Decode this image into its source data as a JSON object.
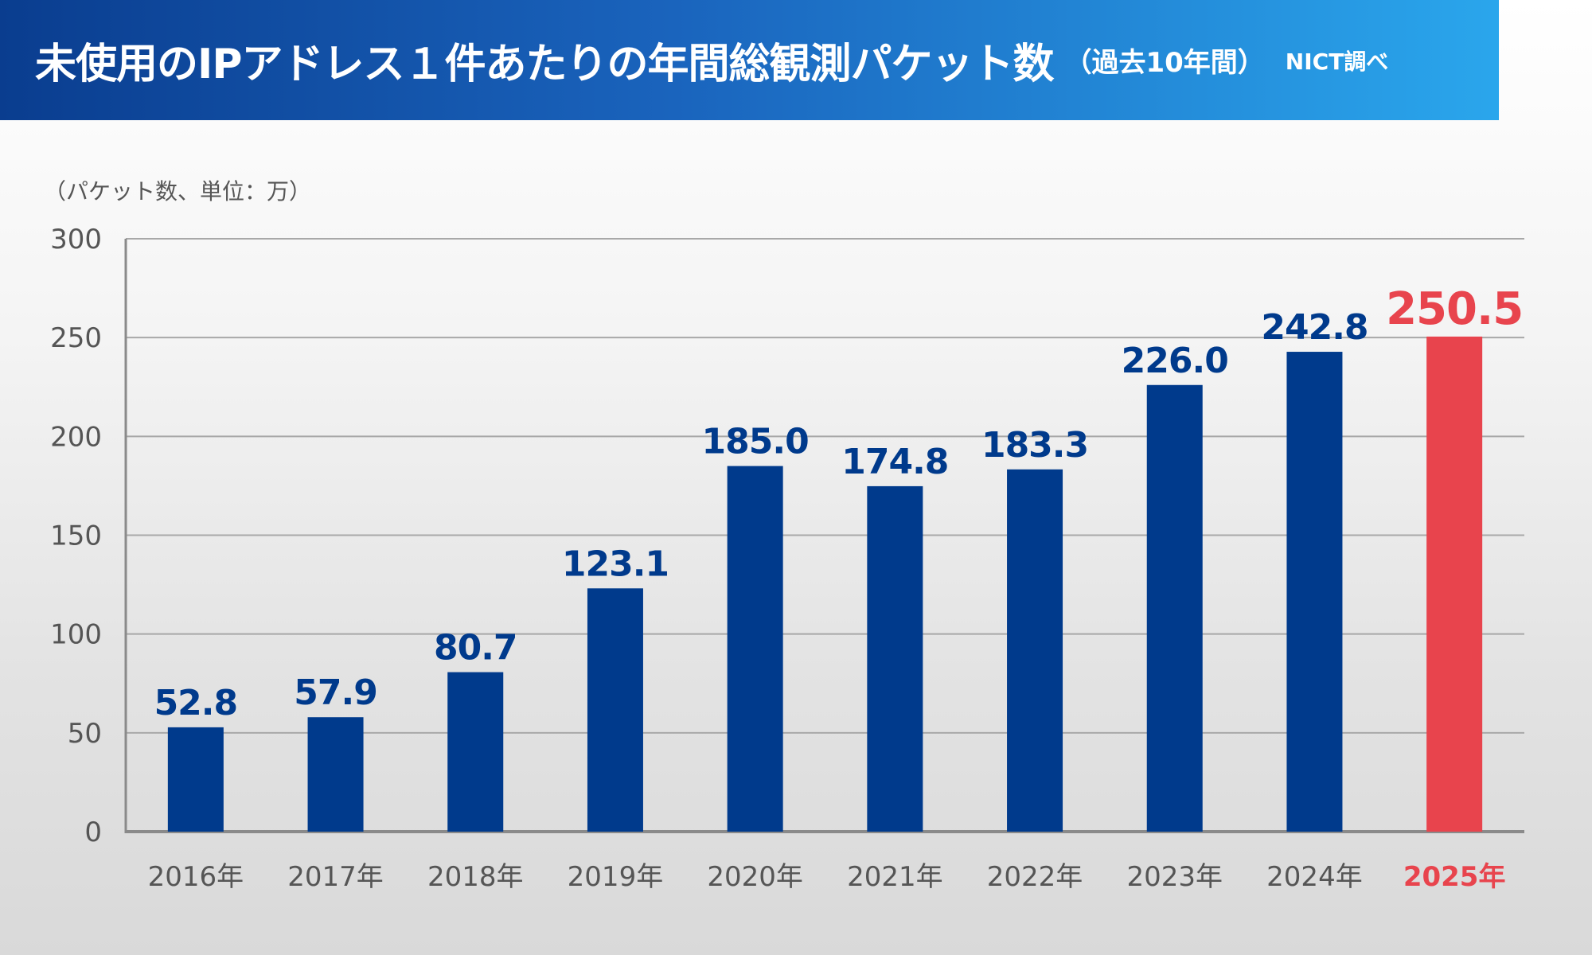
{
  "header": {
    "title": "未使用のIPアドレス１件あたりの年間総観測パケット数",
    "subtitle": "（過去10年間）",
    "source": "NICT調べ"
  },
  "colors": {
    "bar": "#003a8c",
    "highlight": "#e8444d",
    "axis_text": "#555555",
    "grid": "#a8a8a8"
  },
  "chart_data": {
    "type": "bar",
    "unit_label": "（パケット数、単位：万）",
    "categories": [
      "2016年",
      "2017年",
      "2018年",
      "2019年",
      "2020年",
      "2021年",
      "2022年",
      "2023年",
      "2024年",
      "2025年"
    ],
    "values": [
      52.8,
      57.9,
      80.7,
      123.1,
      185.0,
      174.8,
      183.3,
      226.0,
      242.8,
      250.5
    ],
    "value_labels": [
      "52.8",
      "57.9",
      "80.7",
      "123.1",
      "185.0",
      "174.8",
      "183.3",
      "226.0",
      "242.8",
      "250.5"
    ],
    "ylim": [
      0,
      300
    ],
    "yticks": [
      "0",
      "50",
      "100",
      "150",
      "200",
      "250",
      "300"
    ],
    "highlight_category": "2025年",
    "grid": true
  }
}
